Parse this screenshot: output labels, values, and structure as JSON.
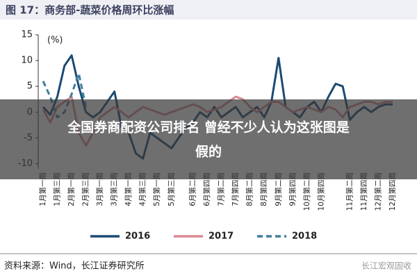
{
  "chart_data": {
    "type": "line",
    "title": "图 17：商务部-蔬菜价格周环比涨幅",
    "y_label": "(%)",
    "categories": [
      "1月第一周",
      null,
      "1月第三周",
      null,
      "2月第一周",
      null,
      "2月第三周",
      null,
      "3月第一周",
      null,
      "3月第三周",
      null,
      "4月第一周",
      null,
      "4月第三周",
      null,
      "5月第一周",
      null,
      "5月第三周",
      null,
      null,
      "6月第二周",
      null,
      "6月第四周",
      null,
      "7月第二周",
      null,
      "7月第四周",
      null,
      "8月第二周",
      null,
      "8月第四周",
      null,
      "9月第二周",
      null,
      "9月第四周",
      null,
      "10月第二周",
      null,
      "10月第四周",
      null,
      null,
      null,
      "11月第二周",
      null,
      "11月第四周",
      null,
      "12月第二周",
      null,
      "12月第四周"
    ],
    "series": [
      {
        "name": "2016",
        "color": "#1b4a72",
        "dashed": false,
        "values": [
          1,
          -0.5,
          3,
          9,
          11,
          5,
          0,
          -1,
          0,
          2,
          4,
          -3,
          -4,
          -8,
          -9,
          -4,
          -5,
          -6,
          -7,
          -5,
          -3,
          -2,
          0,
          -1,
          1,
          -1,
          0,
          1,
          -1,
          0,
          1,
          -1,
          2,
          10.5,
          1,
          0,
          -1,
          1,
          2,
          0,
          3,
          5.5,
          5,
          -1.5,
          0,
          1,
          0,
          1,
          1.5,
          1.5
        ]
      },
      {
        "name": "2017",
        "color": "#d98a91",
        "dashed": false,
        "values": [
          0.5,
          -2,
          1,
          2,
          3,
          -4,
          -6.5,
          -4,
          -1,
          0,
          1,
          0,
          -1,
          0,
          1,
          0.5,
          0,
          -0.5,
          0,
          0.5,
          1,
          1.5,
          1,
          0,
          0.5,
          1,
          2,
          3,
          2.5,
          1,
          0,
          1,
          2,
          2,
          1,
          0,
          0.5,
          1,
          0.5,
          0,
          1,
          0.5,
          -1,
          1,
          1.5,
          2,
          2,
          1.5,
          2,
          2
        ]
      },
      {
        "name": "2018",
        "color": "#3f7e9c",
        "dashed": true,
        "values": [
          6,
          3,
          -1,
          0,
          3.5,
          7.5,
          1,
          null,
          null,
          null,
          null,
          null,
          null,
          null,
          null,
          null,
          null,
          null,
          null,
          null,
          null,
          null,
          null,
          null,
          null,
          null,
          null,
          null,
          null,
          null,
          null,
          null,
          null,
          null,
          null,
          null,
          null,
          null,
          null,
          null,
          null,
          null,
          null,
          null,
          null,
          null,
          null,
          null,
          null,
          null
        ]
      }
    ],
    "ylim": [
      -11,
      15
    ],
    "yticks": [
      -10,
      -5,
      0,
      5,
      10,
      15
    ],
    "grid": false,
    "legend": "bottom"
  },
  "banner": {
    "lines": [
      "全国券商配资公司排名   曾经不少人认为这张图是",
      "假的"
    ]
  },
  "footer": {
    "source": "资料来源：Wind，长江证券研究所",
    "watermark": "长江宏观固收"
  }
}
